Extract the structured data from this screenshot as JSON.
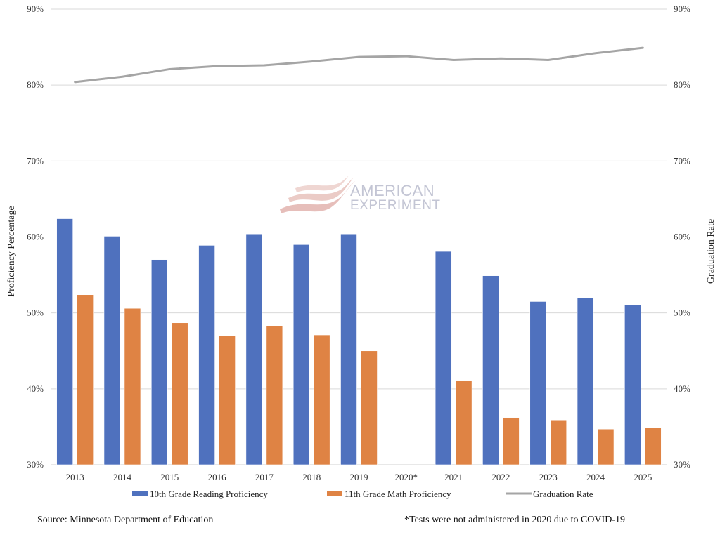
{
  "chart_data": {
    "type": "bar",
    "title": "",
    "categories": [
      "2013",
      "2014",
      "2015",
      "2016",
      "2017",
      "2018",
      "2019",
      "2020*",
      "2021",
      "2022",
      "2023",
      "2024",
      "2025"
    ],
    "series": [
      {
        "name": "10th Grade Reading Proficiency",
        "type": "bar",
        "axis": "left",
        "color": "#4f71be",
        "values": [
          62.4,
          60.1,
          57.0,
          58.9,
          60.4,
          59.0,
          60.4,
          null,
          58.1,
          54.9,
          51.5,
          52.0,
          51.1
        ]
      },
      {
        "name": "11th Grade Math Proficiency",
        "type": "bar",
        "axis": "left",
        "color": "#df8344",
        "values": [
          52.4,
          50.6,
          48.7,
          47.0,
          48.3,
          47.1,
          45.0,
          null,
          41.1,
          36.2,
          35.9,
          34.7,
          34.9
        ]
      },
      {
        "name": "Graduation Rate",
        "type": "line",
        "axis": "right",
        "color": "#a5a5a5",
        "values": [
          80.4,
          81.1,
          82.1,
          82.5,
          82.6,
          83.1,
          83.7,
          83.8,
          83.3,
          83.5,
          83.3,
          84.2,
          84.9
        ]
      }
    ],
    "ylabel": "Proficiency Percentage",
    "y2label": "Graduation Rate",
    "xlabel": "",
    "ylim": [
      30,
      90
    ],
    "y2lim": [
      30,
      90
    ],
    "yticks": [
      "30%",
      "40%",
      "50%",
      "60%",
      "70%",
      "80%",
      "90%"
    ],
    "y2ticks": [
      "30%",
      "40%",
      "50%",
      "60%",
      "70%",
      "80%",
      "90%"
    ],
    "grid": true,
    "legend_position": "bottom"
  },
  "watermark": {
    "line1": "AMERICAN",
    "line2": "EXPERIMENT"
  },
  "footer": {
    "source": "Source: Minnesota Department of Education",
    "note": "*Tests were not administered in 2020 due to COVID-19"
  }
}
